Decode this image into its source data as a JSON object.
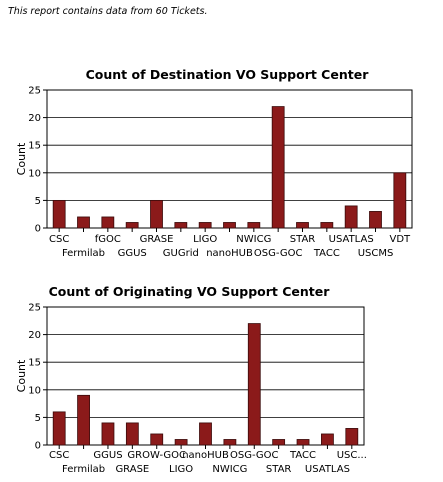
{
  "report_note": "This report contains data from 60 Tickets.",
  "chart_data": [
    {
      "type": "bar",
      "title": "Count of Destination VO Support Center",
      "xlabel": "",
      "ylabel": "Count",
      "ylim": [
        0,
        25
      ],
      "yticks": [
        0,
        5,
        10,
        15,
        20,
        25
      ],
      "grid": true,
      "bar_color": "#8b1a1a",
      "categories": [
        "CSC",
        "Fermilab",
        "fGOC",
        "GGUS",
        "GRASE",
        "GUGrid",
        "LIGO",
        "nanoHUB",
        "NWICG",
        "OSG-GOC",
        "STAR",
        "TACC",
        "USATLAS",
        "USCMS",
        "VDT"
      ],
      "values": [
        5,
        2,
        2,
        1,
        5,
        1,
        1,
        1,
        1,
        22,
        1,
        1,
        4,
        3,
        10
      ]
    },
    {
      "type": "bar",
      "title": "Count of Originating VO Support Center",
      "xlabel": "",
      "ylabel": "Count",
      "ylim": [
        0,
        25
      ],
      "yticks": [
        0,
        5,
        10,
        15,
        20,
        25
      ],
      "grid": true,
      "bar_color": "#8b1a1a",
      "categories": [
        "CSC",
        "Fermilab",
        "GGUS",
        "GRASE",
        "GROW-GOC",
        "LIGO",
        "nanoHUB",
        "NWICG",
        "OSG-GOC",
        "STAR",
        "TACC",
        "USATLAS",
        "USC..."
      ],
      "values": [
        6,
        9,
        4,
        4,
        2,
        1,
        4,
        1,
        22,
        1,
        1,
        2,
        3
      ]
    }
  ]
}
